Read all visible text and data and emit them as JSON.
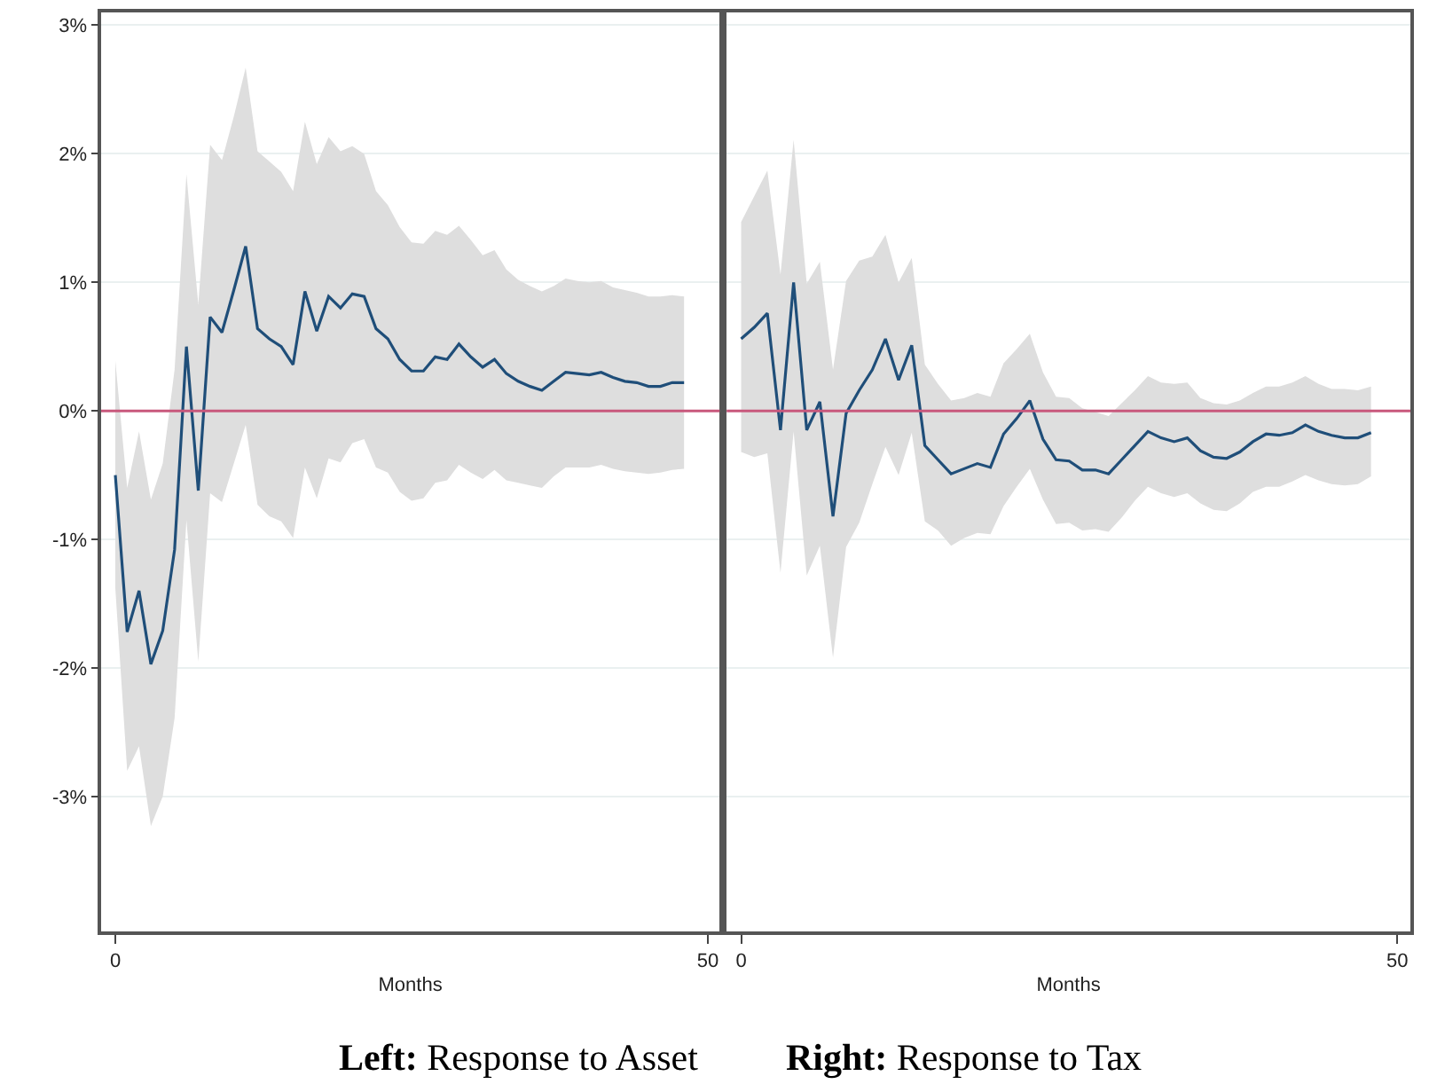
{
  "chart_data": [
    {
      "type": "line",
      "xlabel": "Months",
      "x": [
        0,
        1,
        2,
        3,
        4,
        5,
        6,
        7,
        8,
        9,
        10,
        11,
        12,
        13,
        14,
        15,
        16,
        17,
        18,
        19,
        20,
        21,
        22,
        23,
        24,
        25,
        26,
        27,
        28,
        29,
        30,
        31,
        32,
        33,
        34,
        35,
        36,
        37,
        38,
        39,
        40,
        41,
        42,
        43,
        44,
        45,
        46,
        47,
        48
      ],
      "series": [
        {
          "color": "#1f4e79",
          "values": [
            -0.5,
            -1.72,
            -1.4,
            -1.97,
            -1.71,
            -1.08,
            0.5,
            -0.62,
            0.73,
            0.61,
            0.94,
            1.28,
            0.64,
            0.56,
            0.5,
            0.36,
            0.93,
            0.62,
            0.89,
            0.8,
            0.91,
            0.89,
            0.64,
            0.56,
            0.4,
            0.31,
            0.31,
            0.42,
            0.4,
            0.52,
            0.42,
            0.34,
            0.4,
            0.29,
            0.23,
            0.19,
            0.16,
            0.23,
            0.3,
            0.29,
            0.28,
            0.3,
            0.26,
            0.23,
            0.22,
            0.19,
            0.19,
            0.22,
            0.22
          ],
          "upper": [
            0.39,
            -0.6,
            -0.16,
            -0.69,
            -0.41,
            0.32,
            1.84,
            0.83,
            2.07,
            1.95,
            2.29,
            2.67,
            2.02,
            1.94,
            1.86,
            1.71,
            2.25,
            1.92,
            2.13,
            2.02,
            2.06,
            2.0,
            1.71,
            1.6,
            1.43,
            1.31,
            1.3,
            1.4,
            1.37,
            1.44,
            1.33,
            1.21,
            1.25,
            1.1,
            1.02,
            0.97,
            0.93,
            0.97,
            1.03,
            1.01,
            1.0,
            1.01,
            0.96,
            0.94,
            0.92,
            0.89,
            0.89,
            0.9,
            0.89
          ],
          "lower": [
            -1.38,
            -2.8,
            -2.61,
            -3.23,
            -3.0,
            -2.39,
            -0.85,
            -1.95,
            -0.64,
            -0.71,
            -0.41,
            -0.11,
            -0.73,
            -0.82,
            -0.86,
            -0.99,
            -0.44,
            -0.68,
            -0.37,
            -0.4,
            -0.25,
            -0.22,
            -0.44,
            -0.48,
            -0.63,
            -0.7,
            -0.68,
            -0.56,
            -0.54,
            -0.42,
            -0.48,
            -0.53,
            -0.46,
            -0.54,
            -0.56,
            -0.58,
            -0.6,
            -0.51,
            -0.44,
            -0.44,
            -0.44,
            -0.42,
            -0.45,
            -0.47,
            -0.48,
            -0.49,
            -0.48,
            -0.46,
            -0.45
          ]
        }
      ],
      "xlim": [
        -1.2,
        51
      ],
      "xticks": [
        0,
        50
      ],
      "ylim": [
        -4.05,
        3.1
      ],
      "yticks": [
        {
          "value": -3,
          "label": "-3%"
        },
        {
          "value": -2,
          "label": "-2%"
        },
        {
          "value": -1,
          "label": "-1%"
        },
        {
          "value": 0,
          "label": "0%"
        },
        {
          "value": 1,
          "label": "1%"
        },
        {
          "value": 2,
          "label": "2%"
        },
        {
          "value": 3,
          "label": "3%"
        }
      ],
      "grid": "y",
      "marker": "none",
      "line_style": "solid",
      "ref_lines": [
        {
          "axis": "y",
          "value": 0,
          "color": "#c8587c"
        }
      ],
      "annotations": [
        "Left: Response to Asset"
      ]
    },
    {
      "type": "line",
      "xlabel": "Months",
      "x": [
        0,
        1,
        2,
        3,
        4,
        5,
        6,
        7,
        8,
        9,
        10,
        11,
        12,
        13,
        14,
        15,
        16,
        17,
        18,
        19,
        20,
        21,
        22,
        23,
        24,
        25,
        26,
        27,
        28,
        29,
        30,
        31,
        32,
        33,
        34,
        35,
        36,
        37,
        38,
        39,
        40,
        41,
        42,
        43,
        44,
        45,
        46,
        47,
        48
      ],
      "series": [
        {
          "color": "#1f4e79",
          "values": [
            0.56,
            0.65,
            0.76,
            -0.15,
            1.0,
            -0.15,
            0.07,
            -0.82,
            -0.02,
            0.16,
            0.32,
            0.56,
            0.24,
            0.51,
            -0.27,
            -0.38,
            -0.49,
            -0.45,
            -0.41,
            -0.44,
            -0.18,
            -0.06,
            0.08,
            -0.22,
            -0.38,
            -0.39,
            -0.46,
            -0.46,
            -0.49,
            -0.38,
            -0.27,
            -0.16,
            -0.21,
            -0.24,
            -0.21,
            -0.31,
            -0.36,
            -0.37,
            -0.32,
            -0.24,
            -0.18,
            -0.19,
            -0.17,
            -0.11,
            -0.16,
            -0.19,
            -0.21,
            -0.21,
            -0.17
          ],
          "upper": [
            1.47,
            1.67,
            1.87,
            1.06,
            2.11,
            0.99,
            1.16,
            0.32,
            1.01,
            1.17,
            1.2,
            1.37,
            1.0,
            1.19,
            0.36,
            0.21,
            0.08,
            0.1,
            0.14,
            0.11,
            0.37,
            0.48,
            0.6,
            0.3,
            0.11,
            0.1,
            0.02,
            -0.01,
            -0.04,
            0.06,
            0.16,
            0.27,
            0.22,
            0.21,
            0.22,
            0.1,
            0.06,
            0.05,
            0.08,
            0.14,
            0.19,
            0.19,
            0.22,
            0.27,
            0.21,
            0.17,
            0.17,
            0.16,
            0.19
          ],
          "lower": [
            -0.32,
            -0.36,
            -0.33,
            -1.26,
            -0.16,
            -1.28,
            -1.05,
            -1.92,
            -1.06,
            -0.87,
            -0.57,
            -0.28,
            -0.5,
            -0.17,
            -0.86,
            -0.93,
            -1.05,
            -0.99,
            -0.95,
            -0.96,
            -0.74,
            -0.59,
            -0.45,
            -0.69,
            -0.88,
            -0.87,
            -0.93,
            -0.92,
            -0.94,
            -0.83,
            -0.7,
            -0.59,
            -0.64,
            -0.67,
            -0.64,
            -0.72,
            -0.77,
            -0.78,
            -0.72,
            -0.63,
            -0.59,
            -0.59,
            -0.55,
            -0.5,
            -0.54,
            -0.57,
            -0.58,
            -0.57,
            -0.51
          ]
        }
      ],
      "xlim": [
        -1.1,
        51
      ],
      "xticks": [
        0,
        50
      ],
      "ylim": [
        -4.05,
        3.1
      ],
      "yticks": [
        -3,
        -2,
        -1,
        0,
        1,
        2,
        3
      ],
      "grid": "y",
      "marker": "none",
      "line_style": "solid",
      "tick_labels": "x",
      "ref_lines": [
        {
          "axis": "y",
          "value": 0,
          "color": "#c8587c"
        }
      ],
      "annotations": [
        "Right: Response to Tax"
      ]
    }
  ]
}
